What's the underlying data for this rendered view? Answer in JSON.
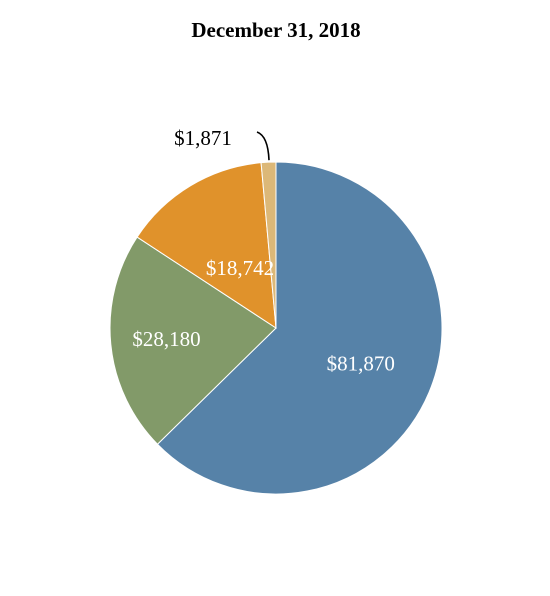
{
  "chart_data": {
    "type": "pie",
    "title": "December 31, 2018",
    "slices": [
      {
        "label": "$81,870",
        "value": 81870,
        "color": "#5682a8"
      },
      {
        "label": "$28,180",
        "value": 28180,
        "color": "#829a69"
      },
      {
        "label": "$18,742",
        "value": 18742,
        "color": "#e0922b"
      },
      {
        "label": "$1,871",
        "value": 1871,
        "color": "#dcb878"
      }
    ],
    "label_colors": [
      "#ffffff",
      "#ffffff",
      "#ffffff",
      "#000000"
    ],
    "start_angle_deg": 0,
    "direction": "clockwise"
  }
}
